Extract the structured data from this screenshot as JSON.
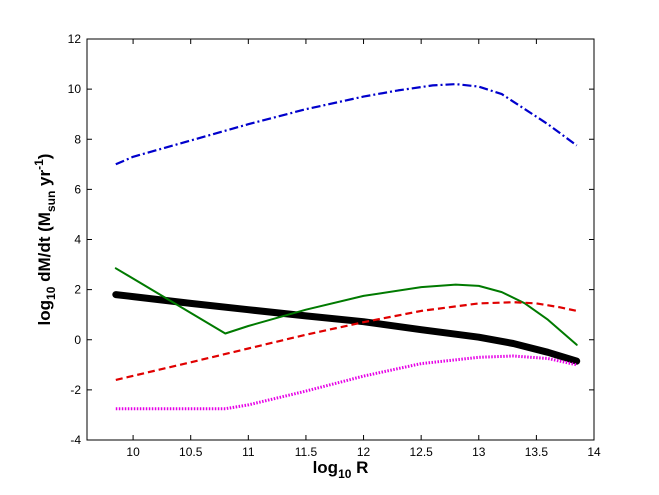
{
  "chart_data": {
    "type": "line",
    "xlabel": {
      "base": "log",
      "sub": "10",
      "rest": " R"
    },
    "ylabel": {
      "base": "log",
      "sub1": "10",
      "mid": " dM/dt (M",
      "sub2": "sun",
      "mid2": " yr",
      "sup": "-1",
      "end": ")"
    },
    "xlim": [
      9.6,
      14
    ],
    "ylim": [
      -4,
      12
    ],
    "xticks": [
      "10",
      "10.5",
      "11",
      "11.5",
      "12",
      "12.5",
      "13",
      "13.5",
      "14"
    ],
    "xtick_values": [
      10,
      10.5,
      11,
      11.5,
      12,
      12.5,
      13,
      13.5,
      14
    ],
    "yticks": [
      "-4",
      "-2",
      "0",
      "2",
      "4",
      "6",
      "8",
      "10",
      "12"
    ],
    "ytick_values": [
      -4,
      -2,
      0,
      2,
      4,
      6,
      8,
      10,
      12
    ],
    "grid": false,
    "legend": null,
    "series": [
      {
        "color": "#0000cc",
        "style": "dashdot",
        "width": 2.2,
        "x": [
          9.85,
          10.0,
          10.5,
          11.0,
          11.5,
          12.0,
          12.3,
          12.6,
          12.8,
          13.0,
          13.2,
          13.4,
          13.6,
          13.85
        ],
        "y": [
          7.0,
          7.3,
          7.95,
          8.6,
          9.2,
          9.7,
          9.95,
          10.15,
          10.2,
          10.1,
          9.8,
          9.2,
          8.6,
          7.75
        ]
      },
      {
        "color": "#000000",
        "style": "solid",
        "width": 7,
        "x": [
          9.85,
          10.0,
          10.5,
          11.0,
          11.5,
          12.0,
          12.5,
          13.0,
          13.3,
          13.6,
          13.85
        ],
        "y": [
          1.8,
          1.72,
          1.45,
          1.2,
          0.95,
          0.72,
          0.4,
          0.1,
          -0.15,
          -0.5,
          -0.85
        ]
      },
      {
        "color": "#007a00",
        "style": "solid",
        "width": 2,
        "x": [
          9.85,
          10.8,
          11.0,
          11.5,
          12.0,
          12.5,
          12.8,
          13.0,
          13.2,
          13.4,
          13.6,
          13.85
        ],
        "y": [
          2.85,
          0.25,
          0.55,
          1.2,
          1.75,
          2.1,
          2.2,
          2.15,
          1.9,
          1.45,
          0.8,
          -0.2
        ]
      },
      {
        "color": "#e00000",
        "style": "dashed",
        "width": 2.2,
        "x": [
          9.85,
          10.5,
          11.0,
          11.5,
          12.0,
          12.5,
          13.0,
          13.3,
          13.5,
          13.7,
          13.85
        ],
        "y": [
          -1.6,
          -0.9,
          -0.35,
          0.2,
          0.7,
          1.15,
          1.45,
          1.5,
          1.45,
          1.3,
          1.15
        ]
      },
      {
        "color": "#e600e6",
        "style": "dotted",
        "width": 3,
        "x": [
          9.85,
          10.5,
          10.8,
          11.0,
          11.5,
          12.0,
          12.5,
          13.0,
          13.3,
          13.6,
          13.85
        ],
        "y": [
          -2.75,
          -2.75,
          -2.75,
          -2.6,
          -2.05,
          -1.45,
          -0.95,
          -0.7,
          -0.65,
          -0.75,
          -1.0
        ]
      }
    ]
  }
}
